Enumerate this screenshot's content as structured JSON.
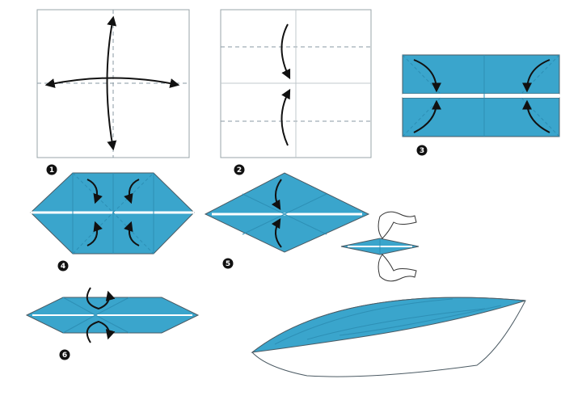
{
  "steps": [
    {
      "number": "1"
    },
    {
      "number": "2"
    },
    {
      "number": "3"
    },
    {
      "number": "4"
    },
    {
      "number": "5"
    },
    {
      "number": "6"
    }
  ],
  "colors": {
    "paper": "#3aa5cc",
    "paper_dark": "#2d8fb5",
    "paper_white": "#ffffff",
    "outline": "#4b5a63",
    "dashed": "#8a9aa3",
    "arrow": "#111111",
    "badge": "#111111"
  }
}
